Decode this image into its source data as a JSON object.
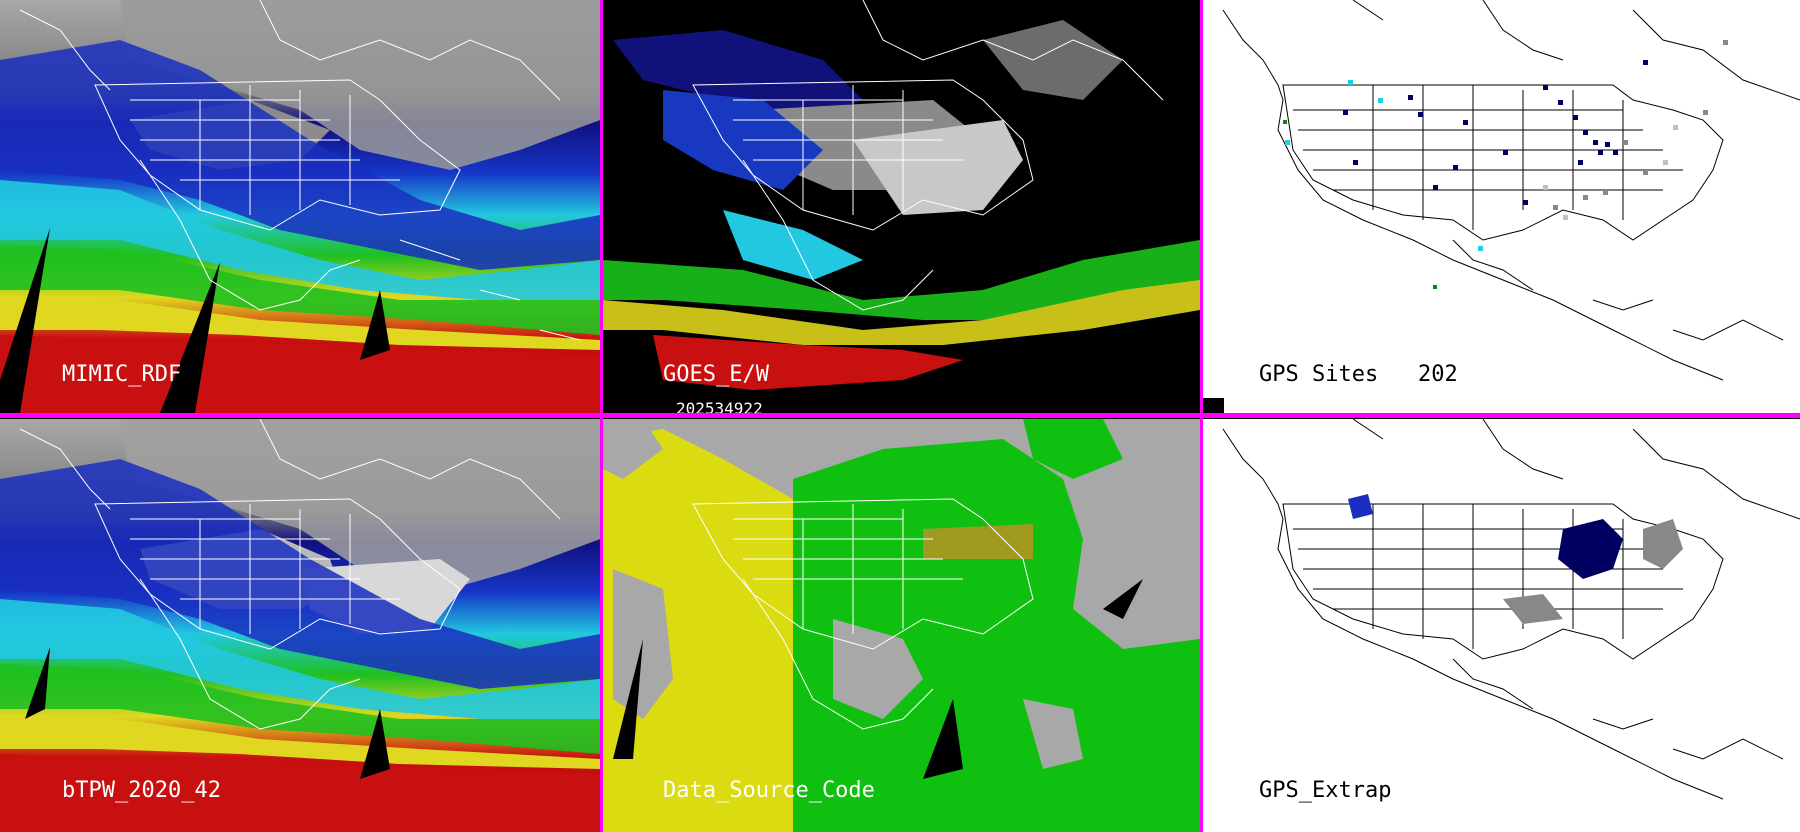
{
  "panels": {
    "top_left": {
      "label": "MIMIC_RDF"
    },
    "top_middle": {
      "label": "GOES_E/W"
    },
    "top_right": {
      "label": "GPS Sites",
      "count": "202"
    },
    "bottom_left": {
      "label": "bTPW_2020_42"
    },
    "bottom_middle": {
      "label": "Data_Source_Code"
    },
    "bottom_right": {
      "label": "GPS_Extrap"
    }
  },
  "timestamp": "202534922",
  "colors": {
    "divider": "#ff00ff",
    "tpw_scale": [
      "#1a1a1a",
      "#5a5a5a",
      "#9a9a9a",
      "#d0d0d0",
      "#101090",
      "#1a3ad8",
      "#2bd8e8",
      "#20c820",
      "#e8e020",
      "#c81010"
    ],
    "source_code": {
      "gray": "#a8a8a8",
      "yellow": "#e0e000",
      "green": "#10c010",
      "olive": "#a09a20"
    },
    "gps": {
      "navy": "#000060",
      "gray": "#888888",
      "light_gray": "#c0c0c0",
      "cyan": "#20d0e0",
      "green": "#108010"
    }
  }
}
